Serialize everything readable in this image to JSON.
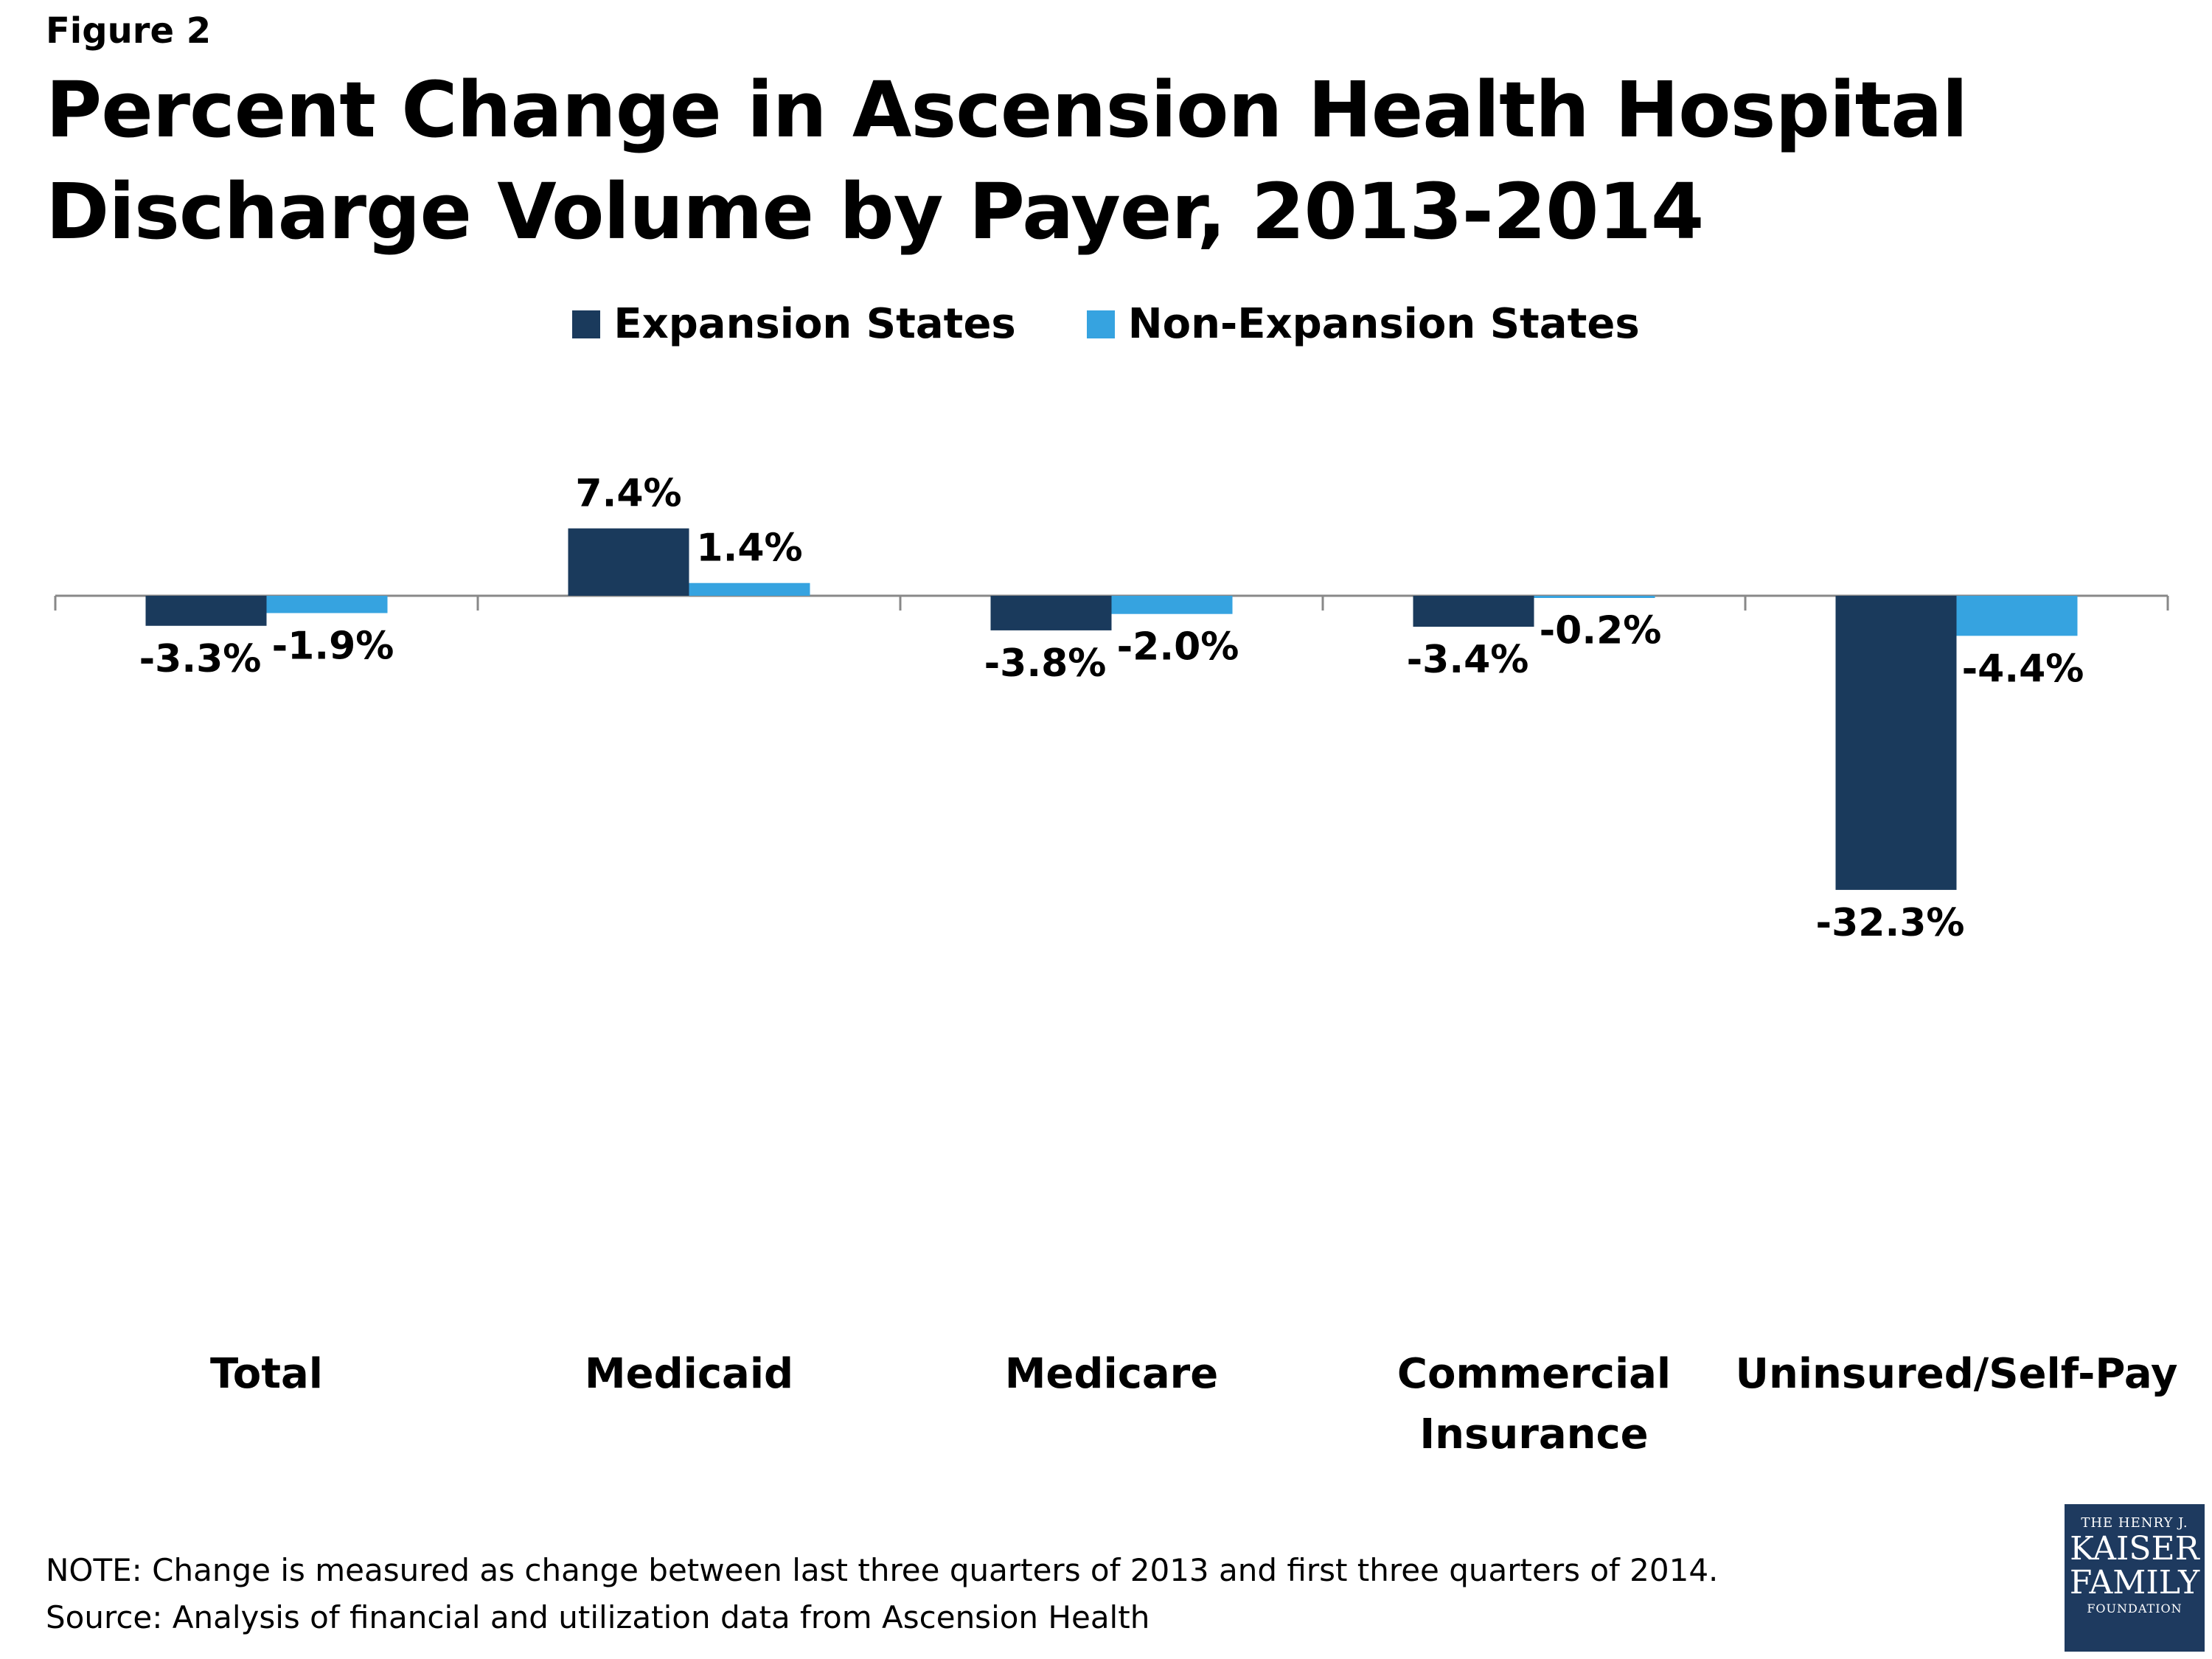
{
  "figure_label": "Figure 2",
  "title": "Percent Change in Ascension Health Hospital Discharge Volume by Payer, 2013-2014",
  "colors": {
    "expansion": "#1a3a5c",
    "non_expansion": "#36a3e0",
    "axis": "#888888"
  },
  "chart_data": {
    "type": "bar",
    "title": "Percent Change in Ascension Health Hospital Discharge Volume by Payer, 2013-2014",
    "categories": [
      [
        "Total"
      ],
      [
        "Medicaid"
      ],
      [
        "Medicare"
      ],
      [
        "Commercial",
        "Insurance"
      ],
      [
        "Uninsured/Self-Pay"
      ]
    ],
    "series": [
      {
        "name": "Expansion States",
        "values": [
          -3.3,
          7.4,
          -3.8,
          -3.4,
          -32.3
        ],
        "labels": [
          "-3.3%",
          "7.4%",
          "-3.8%",
          "-3.4%",
          "-32.3%"
        ]
      },
      {
        "name": "Non-Expansion States",
        "values": [
          -1.9,
          1.4,
          -2.0,
          -0.2,
          -4.4
        ],
        "labels": [
          "-1.9%",
          "1.4%",
          "-2.0%",
          "-0.2%",
          "-4.4%"
        ]
      }
    ],
    "xlabel": "",
    "ylabel": "",
    "ylim": [
      -34,
      10
    ],
    "grid": false,
    "legend": "top-center"
  },
  "notes": {
    "note": "NOTE: Change is measured as change between last three quarters of 2013 and first three quarters of 2014.",
    "source": "Source: Analysis of financial and utilization data from Ascension Health"
  },
  "logo": {
    "line1": "THE HENRY J.",
    "line2": "KAISER",
    "line3": "FAMILY",
    "line4": "FOUNDATION"
  }
}
